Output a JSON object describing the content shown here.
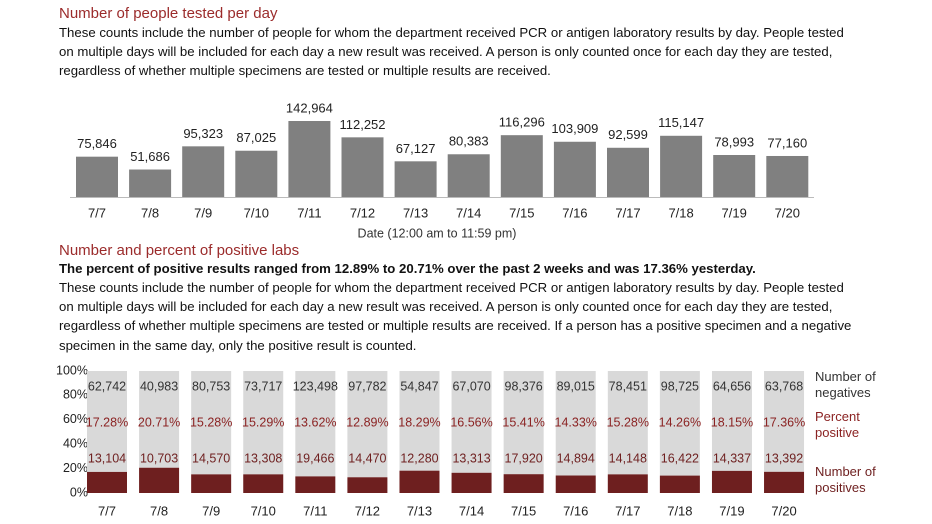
{
  "chart_data": [
    {
      "type": "bar",
      "title": "Number of people tested per day",
      "subtitle": "These counts include the number of people for whom the department received PCR or antigen laboratory results by day. People tested on multiple days will be included for each day a new result was received. A person is only counted once for each day they are tested, regardless of whether multiple specimens are tested or multiple results are received.",
      "xlabel": "Date (12:00 am to 11:59 pm)",
      "categories": [
        "7/7",
        "7/8",
        "7/9",
        "7/10",
        "7/11",
        "7/12",
        "7/13",
        "7/14",
        "7/15",
        "7/16",
        "7/17",
        "7/18",
        "7/19",
        "7/20"
      ],
      "values": [
        75846,
        51686,
        95323,
        87025,
        142964,
        112252,
        67127,
        80383,
        116296,
        103909,
        92599,
        115147,
        78993,
        77160
      ],
      "value_labels": [
        "75,846",
        "51,686",
        "95,323",
        "87,025",
        "142,964",
        "112,252",
        "67,127",
        "80,383",
        "116,296",
        "103,909",
        "92,599",
        "115,147",
        "78,993",
        "77,160"
      ],
      "color": "#808080"
    },
    {
      "type": "stacked_percent_bar",
      "title": "Number and percent of positive labs",
      "highlight": "The percent of positive results ranged from 12.89% to 20.71% over the past 2 weeks and was 17.36% yesterday.",
      "subtitle": "These counts include the number of people for whom the department received PCR or antigen laboratory results by day. People tested on multiple days will be included for each day a new result was received. A person is only counted once for each day they are tested, regardless of whether multiple specimens are tested or multiple results are received. If a person has a positive specimen and a negative specimen in the same day, only the positive result is counted.",
      "categories": [
        "7/7",
        "7/8",
        "7/9",
        "7/10",
        "7/11",
        "7/12",
        "7/13",
        "7/14",
        "7/15",
        "7/16",
        "7/17",
        "7/18",
        "7/19",
        "7/20"
      ],
      "series": [
        {
          "name": "Number of positives",
          "color": "#6e1f1f",
          "values": [
            13104,
            10703,
            14570,
            13308,
            19466,
            14470,
            12280,
            13313,
            17920,
            14894,
            14148,
            16422,
            14337,
            13392
          ],
          "value_labels": [
            "13,104",
            "10,703",
            "14,570",
            "13,308",
            "19,466",
            "14,470",
            "12,280",
            "13,313",
            "17,920",
            "14,894",
            "14,148",
            "16,422",
            "14,337",
            "13,392"
          ]
        },
        {
          "name": "Number of negatives",
          "color": "#d9d9d9",
          "values": [
            62742,
            40983,
            80753,
            73717,
            123498,
            97782,
            54847,
            67070,
            98376,
            89015,
            78451,
            98725,
            64656,
            63768
          ],
          "value_labels": [
            "62,742",
            "40,983",
            "80,753",
            "73,717",
            "123,498",
            "97,782",
            "54,847",
            "67,070",
            "98,376",
            "89,015",
            "78,451",
            "98,725",
            "64,656",
            "63,768"
          ]
        }
      ],
      "percent": {
        "name": "Percent positive",
        "color": "#8b2323",
        "values": [
          17.28,
          20.71,
          15.28,
          15.29,
          13.62,
          12.89,
          18.29,
          16.56,
          15.41,
          14.33,
          15.28,
          14.26,
          18.15,
          17.36
        ],
        "value_labels": [
          "17.28%",
          "20.71%",
          "15.28%",
          "15.29%",
          "13.62%",
          "12.89%",
          "18.29%",
          "16.56%",
          "15.41%",
          "14.33%",
          "15.28%",
          "14.26%",
          "18.15%",
          "17.36%"
        ]
      },
      "ylim": [
        0,
        100
      ],
      "yticks": [
        {
          "value": 0,
          "label": "0%"
        },
        {
          "value": 20,
          "label": "20%"
        },
        {
          "value": 40,
          "label": "40%"
        },
        {
          "value": 60,
          "label": "60%"
        },
        {
          "value": 80,
          "label": "80%"
        },
        {
          "value": 100,
          "label": "100%"
        }
      ]
    }
  ]
}
